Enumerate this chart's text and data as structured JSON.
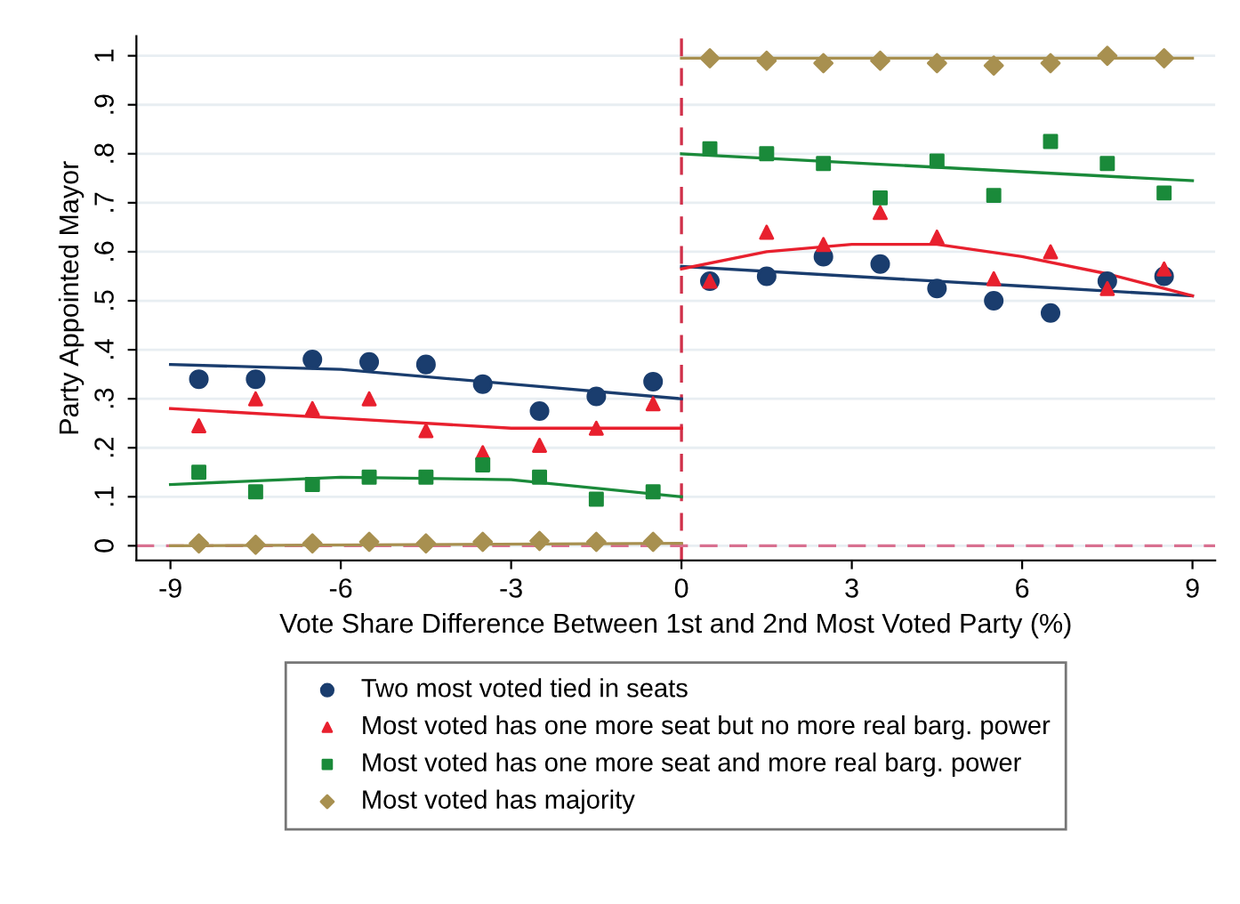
{
  "chart_data": {
    "type": "scatter",
    "xlabel": "Vote Share Difference Between 1st and 2nd Most Voted Party (%)",
    "ylabel": "Party Appointed Mayor",
    "xlim": [
      -9.6,
      9.4
    ],
    "xticks": [
      {
        "value": -9,
        "label": "-9"
      },
      {
        "value": -6,
        "label": "-6"
      },
      {
        "value": -3,
        "label": "-3"
      },
      0,
      3,
      6,
      9
    ],
    "ylim": [
      -0.03,
      1.04
    ],
    "yticks": [
      0,
      {
        "value": 0.1,
        "label": ".1"
      },
      {
        "value": 0.2,
        "label": ".2"
      },
      {
        "value": 0.3,
        "label": ".3"
      },
      {
        "value": 0.4,
        "label": ".4"
      },
      {
        "value": 0.5,
        "label": ".5"
      },
      {
        "value": 0.6,
        "label": ".6"
      },
      {
        "value": 0.7,
        "label": ".7"
      },
      {
        "value": 0.8,
        "label": ".8"
      },
      {
        "value": 0.9,
        "label": ".9"
      },
      1
    ],
    "grid": "y",
    "legend": "bottom",
    "ref_lines": [
      {
        "axis": "x",
        "value": 0,
        "color": "#d0304a",
        "line_style": "dashed"
      },
      {
        "axis": "y",
        "value": 0,
        "color": "#d87090",
        "line_style": "dashed"
      }
    ],
    "series": [
      {
        "name": "Two most voted tied in seats",
        "color": "#1a3d6e",
        "marker": "circle",
        "x": [
          -8.5,
          -7.5,
          -6.5,
          -5.5,
          -4.5,
          -3.5,
          -2.5,
          -1.5,
          -0.5,
          0.5,
          1.5,
          2.5,
          3.5,
          4.5,
          5.5,
          6.5,
          7.5,
          8.5
        ],
        "values": [
          0.34,
          0.34,
          0.38,
          0.375,
          0.37,
          0.33,
          0.275,
          0.305,
          0.335,
          0.54,
          0.55,
          0.59,
          0.575,
          0.525,
          0.5,
          0.475,
          0.54,
          0.55
        ]
      },
      {
        "name": "Most voted has one more seat but no more real barg. power",
        "color": "#e8202e",
        "marker": "triangle",
        "x": [
          -8.5,
          -7.5,
          -6.5,
          -5.5,
          -4.5,
          -3.5,
          -2.5,
          -1.5,
          -0.5,
          0.5,
          1.5,
          2.5,
          3.5,
          4.5,
          5.5,
          6.5,
          7.5,
          8.5
        ],
        "values": [
          0.245,
          0.3,
          0.28,
          0.3,
          0.235,
          0.19,
          0.205,
          0.24,
          0.29,
          0.54,
          0.64,
          0.615,
          0.68,
          0.63,
          0.545,
          0.6,
          0.525,
          0.565
        ]
      },
      {
        "name": "Most voted has one more seat and more real barg. power",
        "color": "#1a8a3a",
        "marker": "square",
        "x": [
          -8.5,
          -7.5,
          -6.5,
          -5.5,
          -4.5,
          -3.5,
          -2.5,
          -1.5,
          -0.5,
          0.5,
          1.5,
          2.5,
          3.5,
          4.5,
          5.5,
          6.5,
          7.5,
          8.5
        ],
        "values": [
          0.15,
          0.11,
          0.125,
          0.14,
          0.14,
          0.165,
          0.14,
          0.095,
          0.11,
          0.81,
          0.8,
          0.78,
          0.71,
          0.785,
          0.715,
          0.825,
          0.78,
          0.72
        ]
      },
      {
        "name": "Most voted has majority",
        "color": "#a89050",
        "marker": "diamond",
        "x": [
          -8.5,
          -7.5,
          -6.5,
          -5.5,
          -4.5,
          -3.5,
          -2.5,
          -1.5,
          -0.5,
          0.5,
          1.5,
          2.5,
          3.5,
          4.5,
          5.5,
          6.5,
          7.5,
          8.5
        ],
        "values": [
          0.005,
          0.002,
          0.005,
          0.008,
          0.005,
          0.008,
          0.01,
          0.008,
          0.008,
          0.995,
          0.99,
          0.985,
          0.99,
          0.985,
          0.98,
          0.985,
          1.0,
          0.995
        ]
      },
      {
        "type": "line",
        "color": "#1a3d6e",
        "x": [
          -9,
          -6,
          -3,
          0
        ],
        "values": [
          0.37,
          0.36,
          0.33,
          0.3
        ]
      },
      {
        "type": "line",
        "color": "#1a3d6e",
        "x": [
          0,
          3,
          6,
          9
        ],
        "values": [
          0.57,
          0.55,
          0.53,
          0.51
        ]
      },
      {
        "type": "line",
        "color": "#e8202e",
        "x": [
          -9,
          -6,
          -3,
          0
        ],
        "values": [
          0.28,
          0.26,
          0.24,
          0.24
        ]
      },
      {
        "type": "line",
        "color": "#e8202e",
        "x": [
          0,
          1.5,
          3,
          4.5,
          6,
          7.5,
          9
        ],
        "values": [
          0.565,
          0.6,
          0.615,
          0.615,
          0.59,
          0.555,
          0.51
        ]
      },
      {
        "type": "line",
        "color": "#1a8a3a",
        "x": [
          -9,
          -6,
          -3,
          0
        ],
        "values": [
          0.125,
          0.14,
          0.135,
          0.1
        ]
      },
      {
        "type": "line",
        "color": "#1a8a3a",
        "x": [
          0,
          9
        ],
        "values": [
          0.8,
          0.745
        ]
      },
      {
        "type": "line",
        "color": "#a89050",
        "x": [
          -9,
          0
        ],
        "values": [
          0.0,
          0.005
        ]
      },
      {
        "type": "line",
        "color": "#a89050",
        "x": [
          0,
          9
        ],
        "values": [
          0.995,
          0.995
        ]
      }
    ]
  }
}
